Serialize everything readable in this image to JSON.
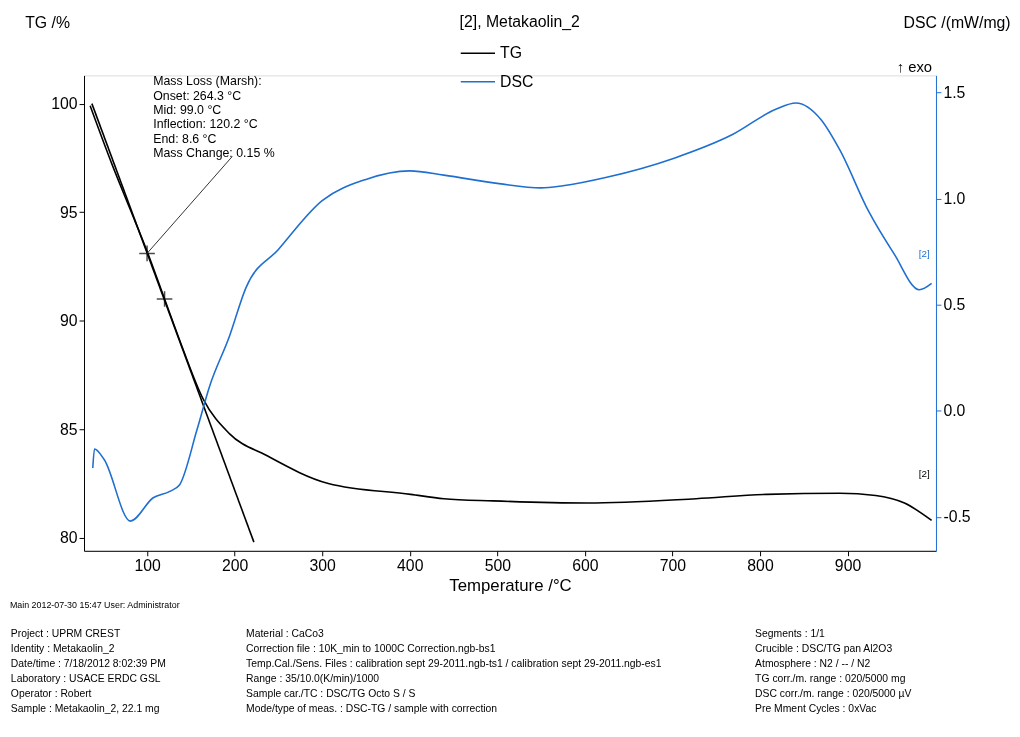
{
  "chart_data": {
    "type": "line",
    "xlabel": "Temperature /°C",
    "ylabel": "TG /%",
    "y2label": "DSC /(mW/mg)",
    "legend_title": "[2], Metakaolin_2",
    "xlim": [
      28,
      1001
    ],
    "xticks": [
      100,
      200,
      300,
      400,
      500,
      600,
      700,
      800,
      900
    ],
    "ylim": [
      79.4,
      101.3
    ],
    "yticks": [
      80,
      85,
      90,
      95,
      100
    ],
    "y2lim": [
      -0.66,
      1.58
    ],
    "y2ticks": [
      {
        "value": -0.5,
        "label": "-0.5"
      },
      {
        "value": 0,
        "label": "0.0"
      },
      {
        "value": 0.5,
        "label": "0.5"
      },
      {
        "value": 1,
        "label": "1.0"
      },
      {
        "value": 1.5,
        "label": "1.5"
      }
    ],
    "grid": false,
    "legend": "top",
    "line_style": "solid",
    "series": [
      {
        "name": "TG",
        "color": "#000000",
        "x": [
          35,
          60,
          80,
          100,
          120,
          140,
          164,
          194,
          236,
          307,
          401,
          439,
          495,
          603,
          727,
          808,
          891,
          932,
          965,
          996
        ],
        "values": [
          99.9,
          97.2,
          95.2,
          93.2,
          91.0,
          88.8,
          86.4,
          84.8,
          83.8,
          82.5,
          82.0,
          81.8,
          81.7,
          81.6,
          81.8,
          82.0,
          82.05,
          81.95,
          81.6,
          80.8
        ]
      },
      {
        "name": "DSC",
        "color": "#1f6fd0",
        "axis": "y2",
        "x": [
          38,
          40,
          51,
          81,
          107,
          126,
          137,
          157,
          171,
          194,
          213,
          250,
          300,
          350,
          400,
          439,
          502,
          550,
          575,
          625,
          702,
          768,
          818,
          841,
          870,
          891,
          924,
          953,
          982,
          996
        ],
        "values": [
          -0.27,
          -0.18,
          -0.23,
          -0.52,
          -0.41,
          -0.38,
          -0.35,
          -0.09,
          0.11,
          0.35,
          0.58,
          0.76,
          0.99,
          1.09,
          1.13,
          1.11,
          1.07,
          1.05,
          1.06,
          1.1,
          1.19,
          1.3,
          1.42,
          1.45,
          1.37,
          1.23,
          0.94,
          0.74,
          0.57,
          0.6
        ]
      },
      {
        "color": "#000000",
        "x": [
          37,
          222
        ],
        "values": [
          100.0,
          79.8
        ]
      },
      {
        "color": "#000000",
        "type": "scatter",
        "marker": "cross",
        "x": [
          100,
          120
        ],
        "values": [
          93.1,
          91.0
        ]
      }
    ],
    "annotations": [
      {
        "text": "Mass Loss (Marsh):\nOnset:          264.3 °C\nMid:              99.0 °C\nInflection:     120.2 °C\nEnd:                8.6 °C\nMass Change:   0.15 %",
        "x": 100,
        "y": 93.1
      },
      "[2]",
      "[2]",
      "↑ exo",
      "Main   2012-07-30 15:47   User: Administrator",
      "Project :  UPRM CREST",
      "Identity :  Metakaolin_2",
      "Date/time :  7/18/2012 8:02:39 PM",
      "Laboratory :  USACE ERDC GSL",
      "Operator :  Robert",
      "Sample :  Metakaolin_2, 22.1 mg",
      "Material :  CaCo3",
      "Correction file :  10K_min to 1000C Correction.ngb-bs1",
      "Temp.Cal./Sens. Files :  calibration sept 29-2011.ngb-ts1 / calibration sept 29-2011.ngb-es1",
      "Range :  35/10.0(K/min)/1000",
      "Sample car./TC :  DSC/TG Octo S / S",
      "Mode/type of meas. :  DSC-TG / sample with correction",
      "Segments :  1/1",
      "Crucible :  DSC/TG pan Al2O3",
      "Atmosphere :  N2 / -- / N2",
      "TG corr./m. range :  020/5000 mg",
      "DSC corr./m. range :  020/5000 µV",
      "Pre Mment Cycles :  0xVac"
    ]
  }
}
